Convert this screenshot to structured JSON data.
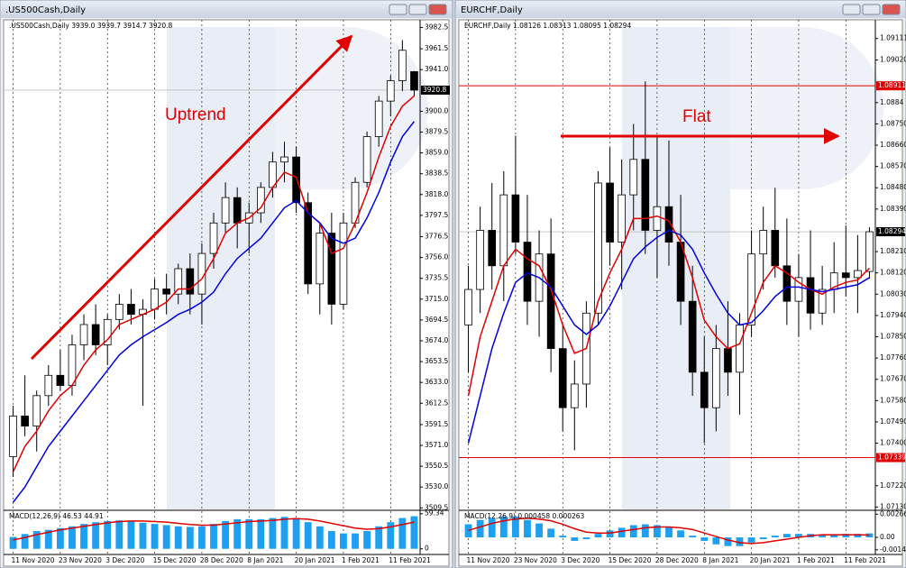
{
  "chart_data": [
    {
      "type": "candlestick",
      "title": ".US500Cash,Daily",
      "info_label": ".US500Cash,Daily  3939.0 3939.7 3914.7 3920.8",
      "annotation": "Uptrend",
      "categories": [
        "11 Nov 2020",
        null,
        null,
        null,
        "23 Nov 2020",
        null,
        null,
        null,
        "3 Dec 2020",
        null,
        null,
        null,
        "15 Dec 2020",
        null,
        null,
        null,
        "28 Dec 2020",
        null,
        null,
        null,
        "8 Jan 2021",
        null,
        null,
        null,
        "20 Jan 2021",
        null,
        null,
        null,
        "1 Feb 2021",
        null,
        null,
        null,
        "11 Feb 2021",
        null,
        null
      ],
      "open": [
        3560,
        3600,
        3590,
        3620,
        3640,
        3630,
        3670,
        3690,
        3670,
        3695,
        3710,
        3700,
        3705,
        3725,
        3720,
        3745,
        3720,
        3760,
        3790,
        3815,
        3790,
        3800,
        3825,
        3850,
        3855,
        3810,
        3730,
        3780,
        3710,
        3790,
        3830,
        3875,
        3910,
        3930,
        3939.0
      ],
      "high": [
        3610,
        3640,
        3625,
        3650,
        3665,
        3680,
        3700,
        3710,
        3700,
        3720,
        3725,
        3715,
        3735,
        3740,
        3750,
        3760,
        3770,
        3800,
        3830,
        3825,
        3810,
        3830,
        3860,
        3870,
        3865,
        3820,
        3790,
        3800,
        3800,
        3835,
        3880,
        3915,
        3935,
        3970,
        3939.7
      ],
      "low": [
        3540,
        3580,
        3565,
        3610,
        3625,
        3620,
        3655,
        3660,
        3650,
        3685,
        3690,
        3610,
        3695,
        3700,
        3710,
        3700,
        3690,
        3745,
        3780,
        3765,
        3760,
        3790,
        3815,
        3830,
        3800,
        3720,
        3700,
        3690,
        3705,
        3785,
        3825,
        3865,
        3895,
        3920,
        3914.7
      ],
      "close": [
        3600,
        3590,
        3620,
        3640,
        3630,
        3670,
        3690,
        3670,
        3695,
        3710,
        3700,
        3705,
        3725,
        3720,
        3745,
        3720,
        3760,
        3790,
        3815,
        3790,
        3800,
        3825,
        3850,
        3855,
        3810,
        3730,
        3780,
        3710,
        3790,
        3830,
        3875,
        3910,
        3930,
        3960,
        3920.8
      ],
      "ma_lines": [
        {
          "color": "#e00000",
          "values": [
            3545,
            3570,
            3585,
            3605,
            3620,
            3630,
            3650,
            3665,
            3675,
            3690,
            3695,
            3700,
            3705,
            3712,
            3725,
            3725,
            3735,
            3755,
            3780,
            3790,
            3795,
            3805,
            3825,
            3840,
            3835,
            3800,
            3790,
            3760,
            3765,
            3790,
            3820,
            3855,
            3885,
            3905,
            3915
          ]
        },
        {
          "color": "#0000e0",
          "values": [
            3515,
            3530,
            3550,
            3570,
            3585,
            3600,
            3615,
            3630,
            3645,
            3660,
            3670,
            3678,
            3685,
            3692,
            3700,
            3705,
            3712,
            3722,
            3740,
            3755,
            3765,
            3775,
            3790,
            3805,
            3812,
            3800,
            3790,
            3775,
            3770,
            3775,
            3795,
            3820,
            3850,
            3875,
            3890
          ]
        }
      ],
      "ylim": [
        3508,
        3990
      ],
      "yticks": [
        3982.5,
        3961.5,
        {
          "value": 3941,
          "label": "3941.0"
        },
        {
          "value": 3900,
          "label": "3900.0"
        },
        3879.5,
        {
          "value": 3859,
          "label": "3859.0"
        },
        3838.5,
        {
          "value": 3818,
          "label": "3818.0"
        },
        3797.5,
        3776.5,
        {
          "value": 3756,
          "label": "3756.0"
        },
        3735.5,
        {
          "value": 3715,
          "label": "3715.0"
        },
        3694.5,
        {
          "value": 3674,
          "label": "3674.0"
        },
        3653.5,
        {
          "value": 3633,
          "label": "3633.0"
        },
        3612.5,
        3591.5,
        {
          "value": 3571,
          "label": "3571.0"
        },
        3550.5,
        {
          "value": 3530,
          "label": "3530.0"
        },
        3509.5
      ],
      "price_tag": 3920.8,
      "levels": [],
      "macd": {
        "label": "MACD(12,26,9) 46.53 44.91",
        "ylim": [
          -5,
          62
        ],
        "yticks": [
          59.34,
          0
        ],
        "histogram_color": "#1ea0f0",
        "signal_color": "#e00000",
        "histogram": [
          20,
          25,
          30,
          32,
          35,
          38,
          42,
          45,
          47,
          48,
          46,
          44,
          42,
          40,
          38,
          37,
          38,
          42,
          47,
          50,
          50,
          50,
          52,
          54,
          52,
          45,
          38,
          30,
          26,
          26,
          30,
          38,
          45,
          52,
          55
        ],
        "signal": [
          15,
          19,
          24,
          28,
          32,
          35,
          38,
          41,
          44,
          46,
          47,
          47,
          46,
          45,
          43,
          41,
          40,
          40,
          42,
          44,
          46,
          47,
          48,
          50,
          51,
          50,
          47,
          43,
          39,
          35,
          33,
          34,
          37,
          41,
          45
        ]
      }
    },
    {
      "type": "candlestick",
      "title": "EURCHF,Daily",
      "info_label": "EURCHF,Daily  1.08126 1.08313 1.08095 1.08294",
      "annotation": "Flat",
      "categories": [
        "11 Nov 2020",
        null,
        null,
        null,
        "23 Nov 2020",
        null,
        null,
        null,
        "3 Dec 2020",
        null,
        null,
        null,
        "15 Dec 2020",
        null,
        null,
        null,
        "28 Dec 2020",
        null,
        null,
        null,
        "8 Jan 2021",
        null,
        null,
        null,
        "20 Jan 2021",
        null,
        null,
        null,
        "1 Feb 2021",
        null,
        null,
        null,
        "11 Feb 2021",
        null,
        null
      ],
      "open": [
        1.079,
        1.0805,
        1.083,
        1.0815,
        1.0845,
        1.0825,
        1.08,
        1.082,
        1.078,
        1.0755,
        1.0765,
        1.0795,
        1.085,
        1.0825,
        1.0845,
        1.086,
        1.083,
        1.084,
        1.0825,
        1.08,
        1.077,
        1.0755,
        1.078,
        1.077,
        1.079,
        1.082,
        1.083,
        1.0815,
        1.08,
        1.081,
        1.0795,
        1.0805,
        1.0812,
        1.081,
        1.08126
      ],
      "high": [
        1.0815,
        1.084,
        1.085,
        1.0855,
        1.087,
        1.0845,
        1.083,
        1.0835,
        1.079,
        1.0775,
        1.08,
        1.0855,
        1.0865,
        1.086,
        1.0875,
        1.0893,
        1.087,
        1.0868,
        1.0845,
        1.0815,
        1.0785,
        1.079,
        1.08,
        1.0795,
        1.083,
        1.084,
        1.0848,
        1.0835,
        1.082,
        1.083,
        1.0815,
        1.0825,
        1.0832,
        1.0828,
        1.08313
      ],
      "low": [
        1.077,
        1.0795,
        1.0805,
        1.08,
        1.082,
        1.079,
        1.0785,
        1.077,
        1.0745,
        1.0737,
        1.0755,
        1.079,
        1.0815,
        1.0805,
        1.083,
        1.082,
        1.081,
        1.0815,
        1.079,
        1.076,
        1.074,
        1.0745,
        1.076,
        1.0752,
        1.0785,
        1.0805,
        1.081,
        1.079,
        1.0785,
        1.0788,
        1.079,
        1.0795,
        1.0802,
        1.0795,
        1.08095
      ],
      "close": [
        1.0805,
        1.083,
        1.0815,
        1.0845,
        1.0825,
        1.08,
        1.082,
        1.078,
        1.0755,
        1.0765,
        1.0795,
        1.085,
        1.0825,
        1.0845,
        1.086,
        1.083,
        1.084,
        1.0825,
        1.08,
        1.077,
        1.0755,
        1.078,
        1.077,
        1.079,
        1.082,
        1.083,
        1.0815,
        1.08,
        1.081,
        1.0795,
        1.0805,
        1.0812,
        1.081,
        1.0813,
        1.08294
      ],
      "ma_lines": [
        {
          "color": "#e00000",
          "values": [
            1.076,
            1.0785,
            1.08,
            1.0815,
            1.0822,
            1.0818,
            1.0815,
            1.0805,
            1.079,
            1.0778,
            1.078,
            1.08,
            1.0812,
            1.0822,
            1.0835,
            1.0835,
            1.0836,
            1.0834,
            1.0825,
            1.081,
            1.0792,
            1.0785,
            1.078,
            1.0782,
            1.0795,
            1.0808,
            1.0815,
            1.0812,
            1.0808,
            1.0805,
            1.0803,
            1.0806,
            1.0808,
            1.0809,
            1.0814
          ]
        },
        {
          "color": "#0000e0",
          "values": [
            1.074,
            1.076,
            1.078,
            1.0795,
            1.0808,
            1.0812,
            1.081,
            1.0806,
            1.0798,
            1.079,
            1.0786,
            1.079,
            1.0798,
            1.0808,
            1.0818,
            1.0823,
            1.0827,
            1.083,
            1.0828,
            1.0822,
            1.0812,
            1.0803,
            1.0795,
            1.079,
            1.0791,
            1.0796,
            1.0802,
            1.0806,
            1.0806,
            1.0805,
            1.0804,
            1.0805,
            1.0806,
            1.0807,
            1.081
          ]
        }
      ],
      "ylim": [
        1.0712,
        1.0919
      ],
      "yticks": [
        1.09111,
        {
          "value": 1.0902,
          "label": "1.09020"
        },
        1.0884,
        {
          "value": 1.0875,
          "label": "1.08750"
        },
        {
          "value": 1.0866,
          "label": "1.08660"
        },
        {
          "value": 1.0857,
          "label": "1.08570"
        },
        {
          "value": 1.0848,
          "label": "1.08480"
        },
        {
          "value": 1.0839,
          "label": "1.08390"
        },
        {
          "value": 1.0821,
          "label": "1.08210"
        },
        {
          "value": 1.0812,
          "label": "1.08120"
        },
        {
          "value": 1.0803,
          "label": "1.08030"
        },
        {
          "value": 1.0794,
          "label": "1.07940"
        },
        {
          "value": 1.0785,
          "label": "1.07850"
        },
        {
          "value": 1.0776,
          "label": "1.07760"
        },
        {
          "value": 1.0767,
          "label": "1.07670"
        },
        {
          "value": 1.0758,
          "label": "1.07580"
        },
        {
          "value": 1.0749,
          "label": "1.07490"
        },
        {
          "value": 1.074,
          "label": "1.07400"
        },
        {
          "value": 1.0722,
          "label": "1.07220"
        },
        {
          "value": 1.0713,
          "label": "1.07130"
        }
      ],
      "price_tag": 1.08294,
      "levels": [
        1.08911,
        1.07339
      ],
      "macd": {
        "label": "MACD(12,26,9) 0.000458 0.000263",
        "ylim": [
          -0.00165,
          0.0029
        ],
        "yticks": [
          0.002666,
          {
            "value": 0,
            "label": "0.00"
          },
          -0.001426
        ],
        "histogram_color": "#1ea0f0",
        "signal_color": "#e00000",
        "histogram": [
          0.0015,
          0.002,
          0.0022,
          0.0024,
          0.0024,
          0.002,
          0.0016,
          0.001,
          0.0002,
          -0.0004,
          -0.0002,
          0.0004,
          0.0008,
          0.0011,
          0.0014,
          0.0015,
          0.0014,
          0.0012,
          0.0008,
          0.0002,
          -0.0004,
          -0.0008,
          -0.001,
          -0.001,
          -0.0006,
          -0.0002,
          0.0002,
          0.0004,
          0.0004,
          0.0004,
          0.0003,
          0.0003,
          0.0004,
          0.0004,
          0.000458
        ],
        "signal": [
          0.0008,
          0.0012,
          0.0016,
          0.0019,
          0.0021,
          0.0022,
          0.0021,
          0.0019,
          0.0015,
          0.001,
          0.0006,
          0.0005,
          0.0005,
          0.0007,
          0.0009,
          0.0011,
          0.0012,
          0.0012,
          0.0011,
          0.0009,
          0.0005,
          0.0001,
          -0.0003,
          -0.0006,
          -0.0007,
          -0.0006,
          -0.0004,
          -0.0002,
          0.0,
          0.0002,
          0.0003,
          0.0003,
          0.0003,
          0.0003,
          0.000263
        ]
      }
    }
  ]
}
